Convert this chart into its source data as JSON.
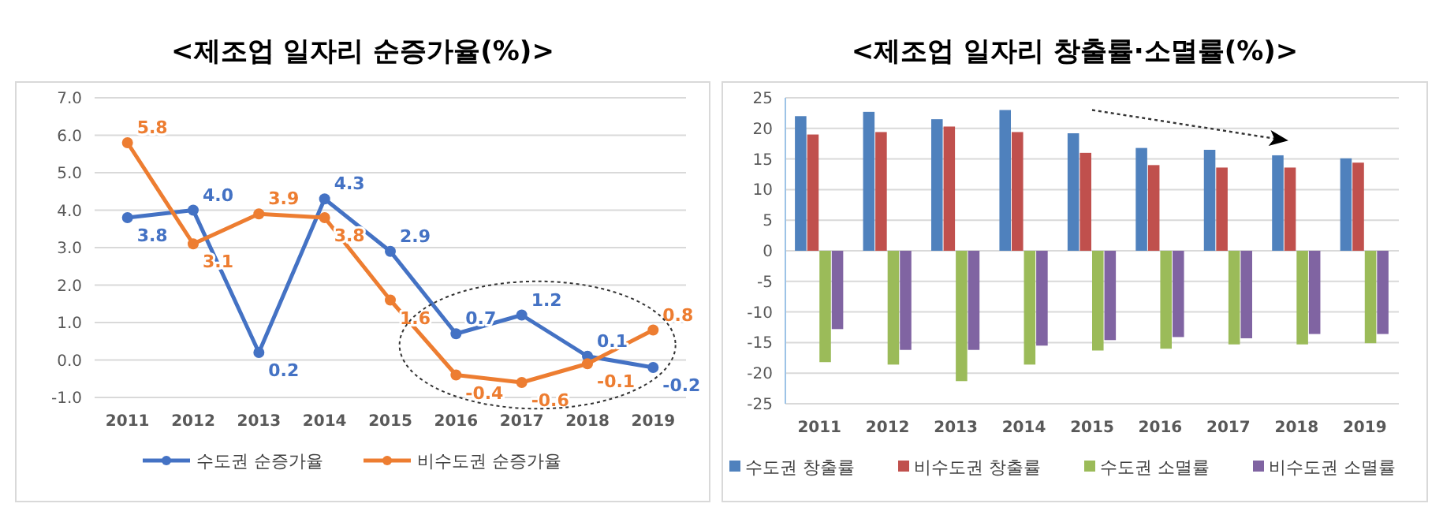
{
  "chart_data": [
    {
      "type": "line",
      "title": "<제조업 일자리 순증가율(%)>",
      "categories": [
        "2011",
        "2012",
        "2013",
        "2014",
        "2015",
        "2016",
        "2017",
        "2018",
        "2019"
      ],
      "series": [
        {
          "name": "수도권 순증가율",
          "color": "#4472c4",
          "values": [
            3.8,
            4.0,
            0.2,
            4.3,
            2.9,
            0.7,
            1.2,
            0.1,
            -0.2
          ],
          "value_labels": [
            "3.8",
            "4.0",
            "0.2",
            "4.3",
            "2.9",
            "0.7",
            "1.2",
            "0.1",
            "-0.2"
          ]
        },
        {
          "name": "비수도권 순증가율",
          "color": "#ed7d31",
          "values": [
            5.8,
            3.1,
            3.9,
            3.8,
            1.6,
            -0.4,
            -0.6,
            -0.1,
            0.8
          ],
          "value_labels": [
            "5.8",
            "3.1",
            "3.9",
            "3.8",
            "1.6",
            "-0.4",
            "-0.6",
            "-0.1",
            "0.8"
          ]
        }
      ],
      "ylim": [
        -1,
        7
      ],
      "yticks": [
        {
          "value": -1,
          "label": "-1.0"
        },
        {
          "value": 0,
          "label": "0.0"
        },
        {
          "value": 1,
          "label": "1.0"
        },
        {
          "value": 2,
          "label": "2.0"
        },
        {
          "value": 3,
          "label": "3.0"
        },
        {
          "value": 4,
          "label": "4.0"
        },
        {
          "value": 5,
          "label": "5.0"
        },
        {
          "value": 6,
          "label": "6.0"
        },
        {
          "value": 7,
          "label": "7.0"
        }
      ],
      "grid": "y",
      "legend": "bottom",
      "marker": "circle"
    },
    {
      "type": "bar",
      "title": "<제조업 일자리 창출률·소멸률(%)>",
      "categories": [
        "2011",
        "2012",
        "2013",
        "2014",
        "2015",
        "2016",
        "2017",
        "2018",
        "2019"
      ],
      "series": [
        {
          "name": "수도권 창출률",
          "color": "#4f81bd",
          "values": [
            22,
            22.7,
            21.5,
            23,
            19.2,
            16.8,
            16.5,
            15.6,
            15.1
          ]
        },
        {
          "name": "비수도권 창출률",
          "color": "#c0504d",
          "values": [
            19,
            19.4,
            20.3,
            19.4,
            16,
            14,
            13.6,
            13.6,
            14.4
          ]
        },
        {
          "name": "수도권 소멸률",
          "color": "#9bbb59",
          "values": [
            -18.2,
            -18.6,
            -21.3,
            -18.6,
            -16.3,
            -16,
            -15.3,
            -15.3,
            -15.1
          ]
        },
        {
          "name": "비수도권 소멸률",
          "color": "#8064a2",
          "values": [
            -12.8,
            -16.2,
            -16.2,
            -15.5,
            -14.6,
            -14.1,
            -14.3,
            -13.6,
            -13.6
          ]
        }
      ],
      "ylim": [
        -25,
        25
      ],
      "yticks": [
        -25,
        -20,
        -15,
        -10,
        -5,
        0,
        5,
        10,
        15,
        20,
        25
      ],
      "grid": "y",
      "legend": "bottom"
    }
  ]
}
